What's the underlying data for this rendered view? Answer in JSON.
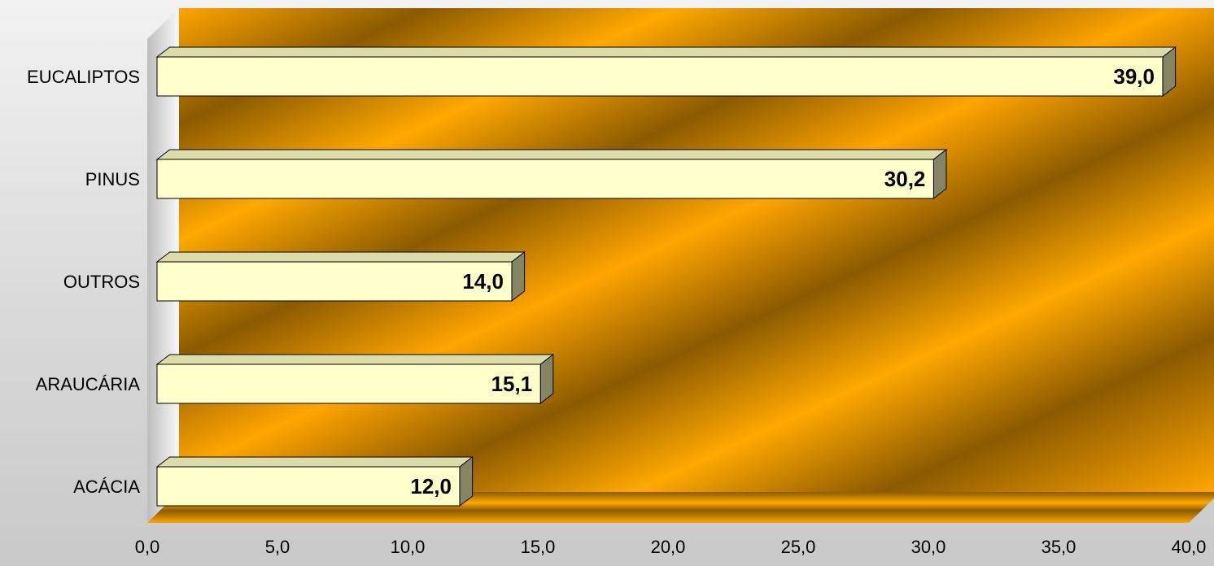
{
  "chart_data": {
    "type": "bar",
    "orientation": "horizontal",
    "categories": [
      "EUCALIPTOS",
      "PINUS",
      "OUTROS",
      "ARAUCÁRIA",
      "ACÁCIA"
    ],
    "values": [
      39.0,
      30.2,
      14.0,
      15.1,
      12.0
    ],
    "value_labels": [
      "39,0",
      "30,2",
      "14,0",
      "15,1",
      "12,0"
    ],
    "x_ticks": [
      "0,0",
      "5,0",
      "10,0",
      "15,0",
      "20,0",
      "25,0",
      "30,0",
      "35,0",
      "40,0"
    ],
    "xlim": [
      0,
      40
    ],
    "grid": false,
    "legend": "none",
    "title": "",
    "xlabel": "",
    "ylabel": "",
    "colors": {
      "bar_front": "#ffffcc",
      "bar_top": "#dcdcaa",
      "bar_side": "#858565",
      "wall_gold": "#ffa500",
      "wall_brown": "#8b5a00"
    }
  }
}
